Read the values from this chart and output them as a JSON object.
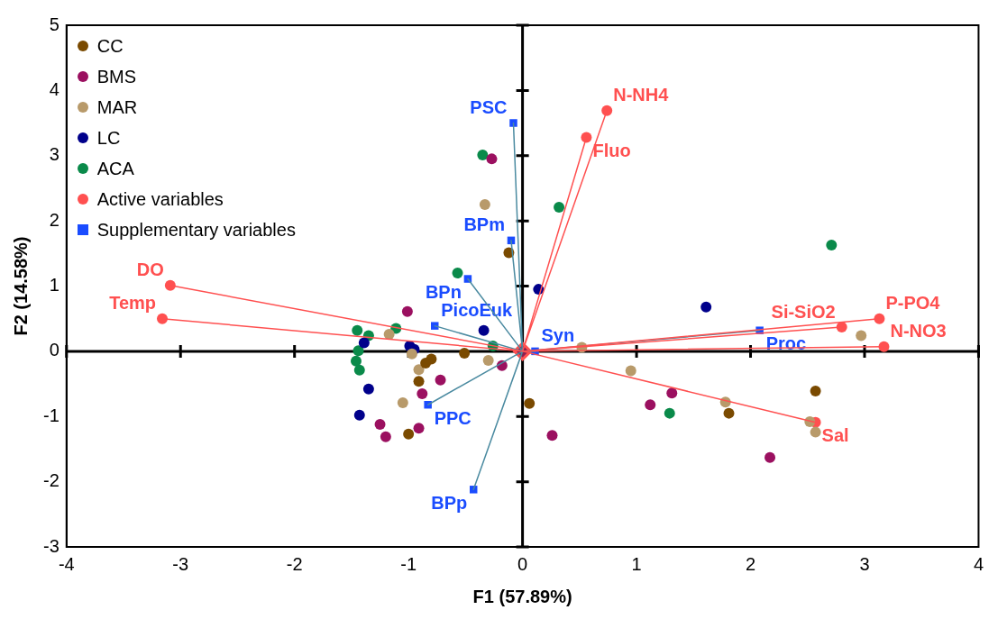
{
  "chart_data": {
    "type": "scatter",
    "xlabel": "F1 (57.89%)",
    "ylabel": "F2 (14.58%)",
    "xlim": [
      -4,
      4
    ],
    "ylim": [
      -3,
      5
    ],
    "xticks": [
      -4,
      -3,
      -2,
      -1,
      0,
      1,
      2,
      3,
      4
    ],
    "yticks": [
      -3,
      -2,
      -1,
      0,
      1,
      2,
      3,
      4,
      5
    ],
    "legend": "top left",
    "marker": "circle",
    "series": [
      {
        "type": "line",
        "color": "#ff5050",
        "marker": "none",
        "x": [
          0,
          -3.09,
          0,
          -3.16,
          0,
          0.56,
          0,
          0.74,
          0,
          3.13,
          0,
          2.8,
          0,
          3.17,
          0,
          2.57
        ],
        "values": [
          0,
          1.01,
          0,
          0.5,
          0,
          3.28,
          0,
          3.69,
          0,
          0.5,
          0,
          0.37,
          0,
          0.07,
          0,
          -1.09
        ]
      },
      {
        "type": "line",
        "color": "#4a8aa0",
        "marker": "none",
        "x": [
          0,
          -0.08,
          0,
          -0.1,
          0,
          -0.48,
          0,
          -0.77,
          0,
          -0.83,
          0,
          -0.43,
          0,
          0.11,
          0,
          2.08
        ],
        "values": [
          0,
          3.5,
          0,
          1.7,
          0,
          1.11,
          0,
          0.39,
          0,
          -0.82,
          0,
          -2.12,
          0,
          0,
          0,
          0.32
        ]
      },
      {
        "name": "CC",
        "color": "#7a4a00",
        "x": [
          -0.12,
          -0.51,
          -0.8,
          -0.85,
          -0.91,
          -1.0,
          0.06,
          1.81,
          2.57
        ],
        "values": [
          1.51,
          -0.03,
          -0.12,
          -0.18,
          -0.46,
          -1.27,
          -0.8,
          -0.95,
          -0.61
        ]
      },
      {
        "name": "BMS",
        "color": "#9b1060",
        "x": [
          -1.01,
          -0.18,
          -0.72,
          -0.88,
          -1.25,
          -0.91,
          -1.2,
          -0.27,
          1.31,
          1.12,
          0.26,
          2.17
        ],
        "values": [
          0.61,
          -0.22,
          -0.44,
          -0.65,
          -1.12,
          -1.18,
          -1.31,
          2.95,
          -0.64,
          -0.82,
          -1.29,
          -1.63
        ]
      },
      {
        "name": "MAR",
        "color": "#b89a6a",
        "x": [
          -1.17,
          -0.97,
          -0.91,
          -0.3,
          -1.05,
          -0.33,
          0.52,
          0.95,
          1.78,
          2.97,
          2.52,
          2.57
        ],
        "values": [
          0.26,
          -0.04,
          -0.28,
          -0.14,
          -0.79,
          2.25,
          0.06,
          -0.3,
          -0.78,
          0.24,
          -1.08,
          -1.24
        ]
      },
      {
        "name": "LC",
        "color": "#00008b",
        "x": [
          -1.39,
          -0.34,
          -0.99,
          -0.95,
          -1.35,
          -1.43,
          0.14,
          1.61
        ],
        "values": [
          0.13,
          0.32,
          0.08,
          0.03,
          -0.58,
          -0.98,
          0.95,
          0.68
        ]
      },
      {
        "name": "ACA",
        "color": "#0a8a4a",
        "x": [
          -0.57,
          -1.45,
          -1.35,
          -1.11,
          -1.44,
          -1.46,
          -1.43,
          -0.26,
          -0.35,
          0.32,
          2.71,
          1.29
        ],
        "values": [
          1.2,
          0.32,
          0.24,
          0.35,
          0.01,
          -0.15,
          -0.29,
          0.08,
          3.01,
          2.21,
          1.63,
          -0.95
        ]
      },
      {
        "name": "Active variables",
        "color": "#ff5050",
        "x": [
          -3.09,
          -3.16,
          0.56,
          0.74,
          3.13,
          2.8,
          3.17,
          2.57
        ],
        "values": [
          1.01,
          0.5,
          3.28,
          3.69,
          0.5,
          0.37,
          0.07,
          -1.09
        ],
        "value_labels": [
          "DO",
          "Temp",
          "Fluo",
          "N-NH4",
          "P-PO4",
          "Si-SiO2",
          "N-NO3",
          "Sal"
        ]
      },
      {
        "name": "Supplementary variables",
        "color": "#1a4cff",
        "marker": "square",
        "x": [
          -0.08,
          -0.1,
          -0.48,
          -0.77,
          -0.83,
          -0.43,
          0.11,
          2.08
        ],
        "values": [
          3.5,
          1.7,
          1.11,
          0.39,
          -0.82,
          -2.12,
          0,
          0.32
        ],
        "value_labels": [
          "PSC",
          "BPm",
          "BPn",
          "PicoEuk",
          "PPC",
          "BPp",
          "Syn",
          "Proc"
        ]
      },
      {
        "color": "#ff5050",
        "marker": "diamond",
        "x": [
          0
        ],
        "values": [
          0
        ]
      }
    ]
  }
}
